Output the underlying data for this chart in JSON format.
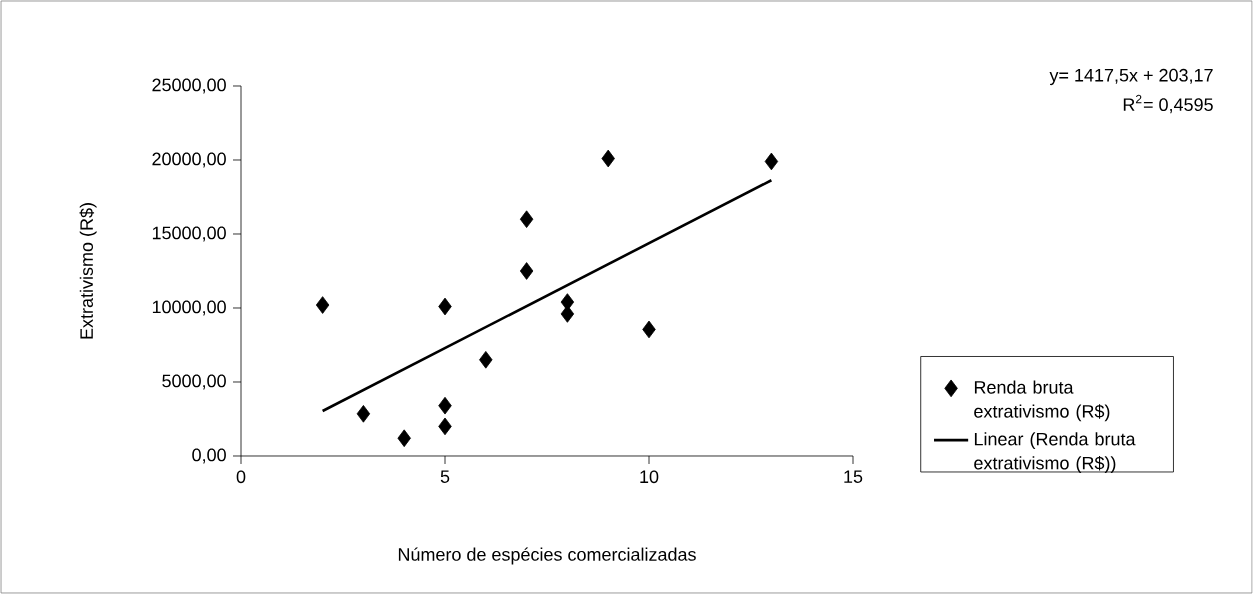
{
  "chart_data": {
    "type": "scatter",
    "xlabel": "Número de espécies comercializadas",
    "ylabel": "Extrativismo (R$)",
    "annotations": [
      "y= 1417,5x + 203,17",
      "R$^{2}$= 0,4595"
    ],
    "xlim": [
      0,
      15
    ],
    "ylim": [
      0,
      25000
    ],
    "xticks": [
      0,
      5,
      10,
      15
    ],
    "yticks": [
      {
        "value": 0,
        "label": "0,00"
      },
      {
        "value": 5000,
        "label": "5000,00"
      },
      {
        "value": 10000,
        "label": "10000,00"
      },
      {
        "value": 15000,
        "label": "15000,00"
      },
      {
        "value": 20000,
        "label": "20000,00"
      },
      {
        "value": 25000,
        "label": "25000,00"
      }
    ],
    "legend": "right",
    "marker": "diamond",
    "grid": false,
    "series": [
      {
        "name": "Renda bruta extrativismo (R$)",
        "color": "#000000",
        "x": [
          2,
          3,
          4,
          5,
          5,
          5,
          6,
          7,
          7,
          8,
          8,
          9,
          10,
          13
        ],
        "values": [
          10200,
          2850,
          1200,
          10100,
          3400,
          2000,
          6500,
          16000,
          12500,
          10400,
          9600,
          20100,
          8550,
          19900
        ]
      },
      {
        "name": "Linear (Renda bruta extrativismo (R$))",
        "type": "line",
        "color": "#000000",
        "marker": "none",
        "line_style": "solid",
        "x": [
          2,
          13
        ],
        "values": [
          3040,
          18630
        ]
      }
    ]
  }
}
